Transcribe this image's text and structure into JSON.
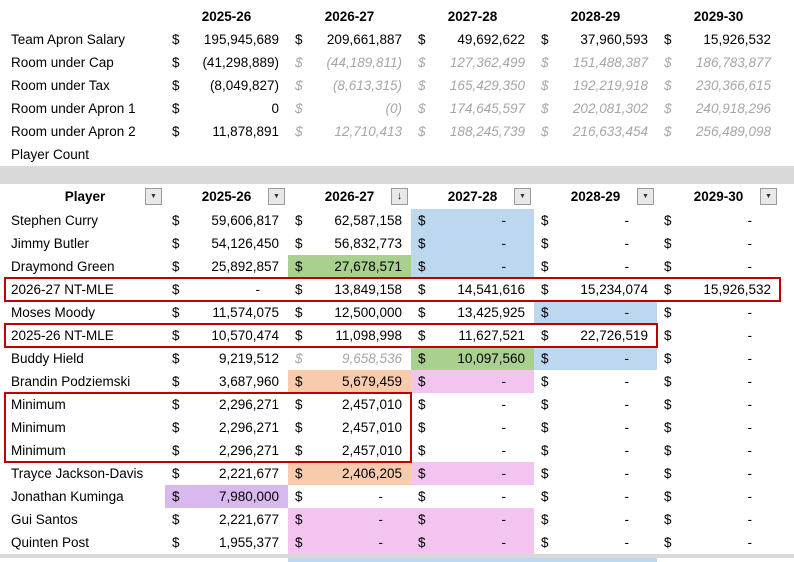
{
  "colors": {
    "highlight_blue": "#BDD7EE",
    "highlight_green": "#A9D08E",
    "highlight_orange": "#F8CBAD",
    "highlight_pink": "#F2C4EF",
    "highlight_purple": "#D9B8F0",
    "red_box_border": "#C00000",
    "projection_gray": "#A6A6A6",
    "separator_gray": "#D9D9D9"
  },
  "summary": {
    "col_headers": [
      "2025-26",
      "2026-27",
      "2027-28",
      "2028-29",
      "2029-30"
    ],
    "rows": [
      {
        "label": "Team Apron Salary",
        "cells": [
          {
            "v": "195,945,689"
          },
          {
            "v": "209,661,887"
          },
          {
            "v": "49,692,622"
          },
          {
            "v": "37,960,593"
          },
          {
            "v": "15,926,532"
          }
        ]
      },
      {
        "label": "Room under Cap",
        "cells": [
          {
            "v": "(41,298,889)"
          },
          {
            "v": "(44,189,811)",
            "proj": true
          },
          {
            "v": "127,362,499",
            "proj": true
          },
          {
            "v": "151,488,387",
            "proj": true
          },
          {
            "v": "186,783,877",
            "proj": true
          }
        ]
      },
      {
        "label": "Room under Tax",
        "cells": [
          {
            "v": "(8,049,827)"
          },
          {
            "v": "(8,613,315)",
            "proj": true
          },
          {
            "v": "165,429,350",
            "proj": true
          },
          {
            "v": "192,219,918",
            "proj": true
          },
          {
            "v": "230,366,615",
            "proj": true
          }
        ]
      },
      {
        "label": "Room under Apron 1",
        "cells": [
          {
            "v": "0"
          },
          {
            "v": "(0)",
            "proj": true
          },
          {
            "v": "174,645,597",
            "proj": true
          },
          {
            "v": "202,081,302",
            "proj": true
          },
          {
            "v": "240,918,296",
            "proj": true
          }
        ]
      },
      {
        "label": "Room under Apron 2",
        "cells": [
          {
            "v": "11,878,891"
          },
          {
            "v": "12,710,413",
            "proj": true
          },
          {
            "v": "188,245,739",
            "proj": true
          },
          {
            "v": "216,633,454",
            "proj": true
          },
          {
            "v": "256,489,098",
            "proj": true
          }
        ]
      },
      {
        "label": "Player Count",
        "cells": [
          {},
          {},
          {},
          {},
          {}
        ]
      }
    ]
  },
  "roster": {
    "filter_glyph": "▼",
    "sorted_glyph": "↓",
    "headers": [
      {
        "label": "Player",
        "sorted": false
      },
      {
        "label": "2025-26",
        "sorted": false
      },
      {
        "label": "2026-27",
        "sorted": true
      },
      {
        "label": "2027-28",
        "sorted": false
      },
      {
        "label": "2028-29",
        "sorted": false
      },
      {
        "label": "2029-30",
        "sorted": false
      }
    ],
    "rows": [
      {
        "name": "Stephen Curry",
        "cells": [
          {
            "v": "59,606,817"
          },
          {
            "v": "62,587,158"
          },
          {
            "v": "-",
            "bg": "highlight_blue"
          },
          {
            "v": "-"
          },
          {
            "v": "-"
          }
        ]
      },
      {
        "name": "Jimmy Butler",
        "cells": [
          {
            "v": "54,126,450"
          },
          {
            "v": "56,832,773"
          },
          {
            "v": "-",
            "bg": "highlight_blue"
          },
          {
            "v": "-"
          },
          {
            "v": "-"
          }
        ]
      },
      {
        "name": "Draymond Green",
        "cells": [
          {
            "v": "25,892,857"
          },
          {
            "v": "27,678,571",
            "bg": "highlight_green"
          },
          {
            "v": "-",
            "bg": "highlight_blue"
          },
          {
            "v": "-"
          },
          {
            "v": "-"
          }
        ]
      },
      {
        "name": "2026-27 NT-MLE",
        "cells": [
          {
            "v": "-"
          },
          {
            "v": "13,849,158"
          },
          {
            "v": "14,541,616"
          },
          {
            "v": "15,234,074"
          },
          {
            "v": "15,926,532"
          }
        ]
      },
      {
        "name": "Moses Moody",
        "cells": [
          {
            "v": "11,574,075"
          },
          {
            "v": "12,500,000"
          },
          {
            "v": "13,425,925"
          },
          {
            "v": "-",
            "bg": "highlight_blue"
          },
          {
            "v": "-"
          }
        ]
      },
      {
        "name": "2025-26 NT-MLE",
        "cells": [
          {
            "v": "10,570,474"
          },
          {
            "v": "11,098,998"
          },
          {
            "v": "11,627,521"
          },
          {
            "v": "22,726,519"
          },
          {
            "v": "-"
          }
        ]
      },
      {
        "name": "Buddy Hield",
        "cells": [
          {
            "v": "9,219,512"
          },
          {
            "v": "9,658,536",
            "proj": true
          },
          {
            "v": "10,097,560",
            "bg": "highlight_green"
          },
          {
            "v": "-",
            "bg": "highlight_blue"
          },
          {
            "v": "-"
          }
        ]
      },
      {
        "name": "Brandin Podziemski",
        "cells": [
          {
            "v": "3,687,960"
          },
          {
            "v": "5,679,459",
            "bg": "highlight_orange"
          },
          {
            "v": "-",
            "bg": "highlight_pink"
          },
          {
            "v": "-"
          },
          {
            "v": "-"
          }
        ]
      },
      {
        "name": "Minimum",
        "cells": [
          {
            "v": "2,296,271"
          },
          {
            "v": "2,457,010"
          },
          {
            "v": "-"
          },
          {
            "v": "-"
          },
          {
            "v": "-"
          }
        ]
      },
      {
        "name": "Minimum",
        "cells": [
          {
            "v": "2,296,271"
          },
          {
            "v": "2,457,010"
          },
          {
            "v": "-"
          },
          {
            "v": "-"
          },
          {
            "v": "-"
          }
        ]
      },
      {
        "name": "Minimum",
        "cells": [
          {
            "v": "2,296,271"
          },
          {
            "v": "2,457,010"
          },
          {
            "v": "-"
          },
          {
            "v": "-"
          },
          {
            "v": "-"
          }
        ]
      },
      {
        "name": "Trayce Jackson-Davis",
        "cells": [
          {
            "v": "2,221,677"
          },
          {
            "v": "2,406,205",
            "bg": "highlight_orange"
          },
          {
            "v": "-",
            "bg": "highlight_pink"
          },
          {
            "v": "-"
          },
          {
            "v": "-"
          }
        ]
      },
      {
        "name": "Jonathan Kuminga",
        "cells": [
          {
            "v": "7,980,000",
            "bg": "highlight_purple"
          },
          {
            "v": "-"
          },
          {
            "v": "-"
          },
          {
            "v": "-"
          },
          {
            "v": "-"
          }
        ]
      },
      {
        "name": "Gui Santos",
        "cells": [
          {
            "v": "2,221,677"
          },
          {
            "v": "-",
            "bg": "highlight_pink"
          },
          {
            "v": "-",
            "bg": "highlight_pink"
          },
          {
            "v": "-"
          },
          {
            "v": "-"
          }
        ]
      },
      {
        "name": "Quinten Post",
        "cells": [
          {
            "v": "1,955,377"
          },
          {
            "v": "-",
            "bg": "highlight_pink"
          },
          {
            "v": "-",
            "bg": "highlight_pink"
          },
          {
            "v": "-"
          },
          {
            "v": "-"
          }
        ]
      }
    ],
    "red_boxes": [
      {
        "row_start": 3,
        "row_end": 3,
        "col_start": 0,
        "col_end": 5
      },
      {
        "row_start": 5,
        "row_end": 5,
        "col_start": 0,
        "col_end": 4
      },
      {
        "row_start": 8,
        "row_end": 10,
        "col_start": 0,
        "col_end": 2
      }
    ],
    "cutoff_blue_cols": [
      2,
      3,
      4
    ]
  }
}
